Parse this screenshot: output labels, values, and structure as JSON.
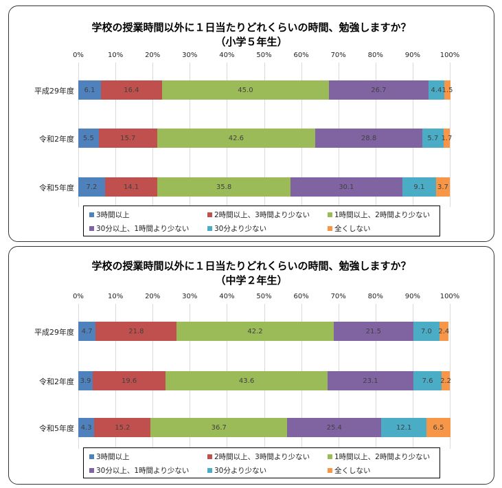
{
  "colors": [
    "#4f81bd",
    "#c0504d",
    "#9bbb59",
    "#8064a2",
    "#4bacc6",
    "#f79646"
  ],
  "chart_data": [
    {
      "type": "bar",
      "stacked": true,
      "orientation": "horizontal",
      "title": [
        "学校の授業時間以外に１日当たりどれくらいの時間、勉強しますか？",
        "（小学５年生）"
      ],
      "xticks": [
        "0%",
        "10%",
        "20%",
        "30%",
        "40%",
        "50%",
        "60%",
        "70%",
        "80%",
        "90%",
        "100%"
      ],
      "xlim": [
        0,
        100
      ],
      "legend_position": "bottom",
      "categories": [
        "平成29年度",
        "令和2年度",
        "令和5年度"
      ],
      "series": [
        {
          "name": "3時間以上",
          "values": [
            6.1,
            5.5,
            7.2
          ]
        },
        {
          "name": "2時間以上、3時間より少ない",
          "values": [
            16.4,
            15.7,
            14.1
          ]
        },
        {
          "name": "1時間以上、2時間より少ない",
          "values": [
            45.0,
            42.6,
            35.8
          ]
        },
        {
          "name": "30分以上、1時間より少ない",
          "values": [
            26.7,
            28.8,
            30.1
          ]
        },
        {
          "name": "30分より少ない",
          "values": [
            4.4,
            5.7,
            9.1
          ]
        },
        {
          "name": "全くしない",
          "values": [
            1.5,
            1.7,
            3.7
          ]
        }
      ]
    },
    {
      "type": "bar",
      "stacked": true,
      "orientation": "horizontal",
      "title": [
        "学校の授業時間以外に１日当たりどれくらいの時間、勉強しますか？",
        "（中学２年生）"
      ],
      "xticks": [
        "0%",
        "10%",
        "20%",
        "30%",
        "40%",
        "50%",
        "60%",
        "70%",
        "80%",
        "90%",
        "100%"
      ],
      "xlim": [
        0,
        100
      ],
      "legend_position": "bottom",
      "categories": [
        "平成29年度",
        "令和2年度",
        "令和5年度"
      ],
      "series": [
        {
          "name": "3時間以上",
          "values": [
            4.7,
            3.9,
            4.3
          ]
        },
        {
          "name": "2時間以上、3時間より少ない",
          "values": [
            21.8,
            19.6,
            15.2
          ]
        },
        {
          "name": "1時間以上、2時間より少ない",
          "values": [
            42.2,
            43.6,
            36.7
          ]
        },
        {
          "name": "30分以上、1時間より少ない",
          "values": [
            21.5,
            23.1,
            25.4
          ]
        },
        {
          "name": "30分より少ない",
          "values": [
            7.0,
            7.6,
            12.1
          ]
        },
        {
          "name": "全くしない",
          "values": [
            2.4,
            2.2,
            6.5
          ]
        }
      ]
    }
  ]
}
